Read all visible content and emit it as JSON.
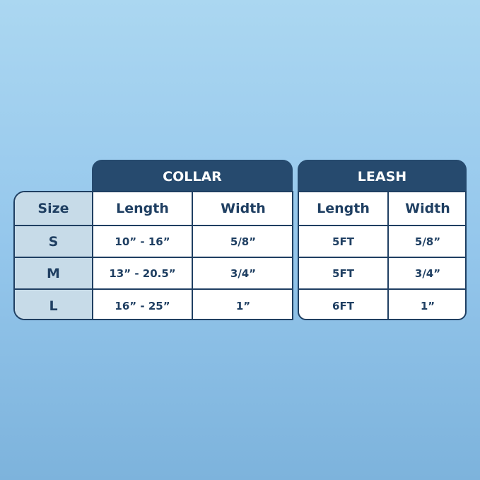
{
  "size_header": "Size",
  "sizes": [
    "S",
    "M",
    "L"
  ],
  "collar": {
    "title": "COLLAR",
    "columns": [
      "Length",
      "Width"
    ],
    "rows": [
      [
        "10” - 16”",
        "5/8”"
      ],
      [
        "13” - 20.5”",
        "3/4”"
      ],
      [
        "16” - 25”",
        "1”"
      ]
    ]
  },
  "leash": {
    "title": "LEASH",
    "columns": [
      "Length",
      "Width"
    ],
    "rows": [
      [
        "5FT",
        "5/8”"
      ],
      [
        "5FT",
        "3/4”"
      ],
      [
        "6FT",
        "1”"
      ]
    ]
  },
  "colors": {
    "header": "#264a6e",
    "size_column": "#c7dbe8",
    "border": "#1f3f62",
    "background_top": "#abd7f1",
    "background_bottom": "#7db3dc"
  }
}
